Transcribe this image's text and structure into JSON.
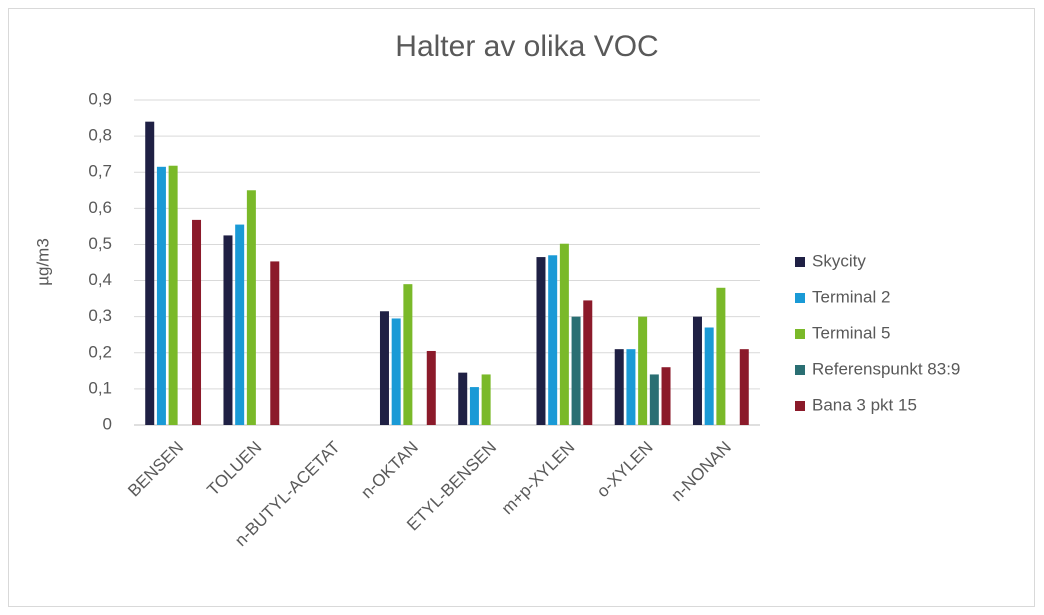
{
  "chart_data": {
    "type": "bar",
    "title": "Halter av olika VOC",
    "y_label": "µg/m3",
    "categories": [
      "BENSEN",
      "TOLUEN",
      "n-BUTYL-ACETAT",
      "n-OKTAN",
      "ETYL-BENSEN",
      "m+p-XYLEN",
      "o-XYLEN",
      "n-NONAN"
    ],
    "series": [
      {
        "name": "Skycity",
        "color": "#1f2044",
        "values": [
          0.84,
          0.525,
          null,
          0.315,
          0.145,
          0.465,
          0.21,
          0.3
        ]
      },
      {
        "name": "Terminal 2",
        "color": "#1a9ad6",
        "values": [
          0.715,
          0.555,
          null,
          0.295,
          0.105,
          0.47,
          0.21,
          0.27
        ]
      },
      {
        "name": "Terminal 5",
        "color": "#7ab929",
        "values": [
          0.718,
          0.65,
          null,
          0.39,
          0.14,
          0.502,
          0.3,
          0.38
        ]
      },
      {
        "name": "Referenspunkt 83:9",
        "color": "#2a6f73",
        "values": [
          null,
          null,
          null,
          null,
          null,
          0.3,
          0.14,
          null
        ]
      },
      {
        "name": "Bana 3 pkt 15",
        "color": "#8b1a2a",
        "values": [
          0.568,
          0.453,
          null,
          0.205,
          null,
          0.345,
          0.16,
          0.21
        ]
      }
    ],
    "ylim": [
      0,
      0.9
    ],
    "yticks": [
      0,
      {
        "value": 0.1,
        "label": "0,1"
      },
      {
        "value": 0.2,
        "label": "0,2"
      },
      {
        "value": 0.3,
        "label": "0,3"
      },
      {
        "value": 0.4,
        "label": "0,4"
      },
      {
        "value": 0.5,
        "label": "0,5"
      },
      {
        "value": 0.6,
        "label": "0,6"
      },
      {
        "value": 0.7,
        "label": "0,7"
      },
      {
        "value": 0.8,
        "label": "0,8"
      },
      {
        "value": 0.9,
        "label": "0,9"
      }
    ],
    "grid": true,
    "legend": "right"
  }
}
